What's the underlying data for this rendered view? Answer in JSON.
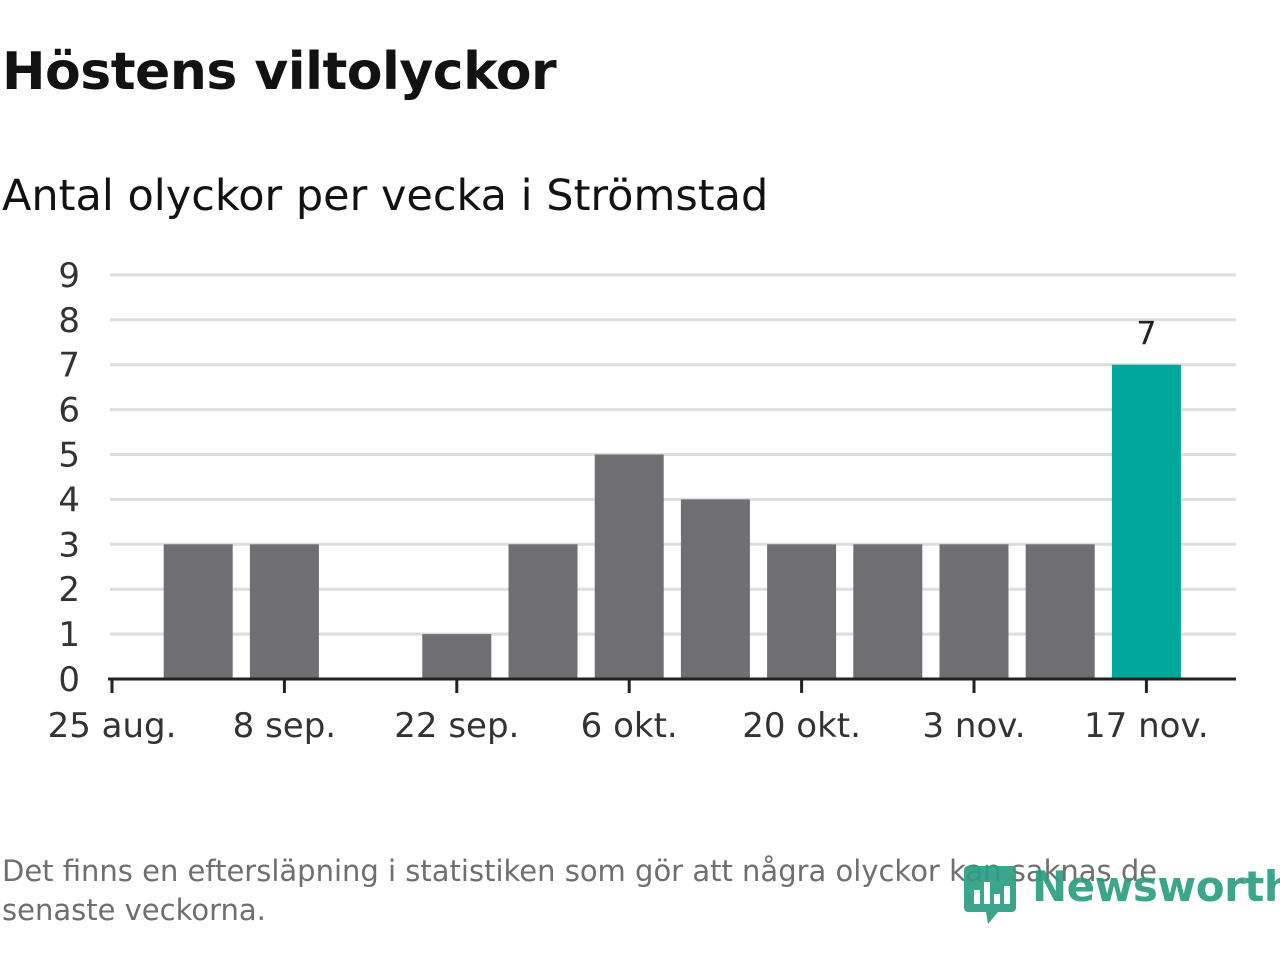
{
  "title": "Höstens viltolyckor",
  "subtitle": "Antal olyckor per vecka i Strömstad",
  "note": {
    "line1": "Det finns en eftersläpning i statistiken som gör att några olyckor kan saknas de",
    "line2": "senaste veckorna."
  },
  "brand": "Newsworthy",
  "colors": {
    "bar": "#6f6e73",
    "highlight": "#00a79b",
    "grid": "#dddddd",
    "axis": "#222222",
    "text": "#333333",
    "brand": "#2d9e83"
  },
  "chart_data": {
    "type": "bar",
    "title": "Höstens viltolyckor",
    "subtitle": "Antal olyckor per vecka i Strömstad",
    "xlabel": "",
    "ylabel": "",
    "ylim": [
      0,
      9
    ],
    "yticks": [
      0,
      1,
      2,
      3,
      4,
      5,
      6,
      7,
      8,
      9
    ],
    "grid": true,
    "weeks": [
      "25 aug.",
      "1 sep.",
      "8 sep.",
      "15 sep.",
      "22 sep.",
      "29 sep.",
      "6 okt.",
      "13 okt.",
      "20 okt.",
      "27 okt.",
      "3 nov.",
      "10 nov.",
      "17 nov."
    ],
    "values": [
      null,
      3,
      3,
      0,
      1,
      3,
      5,
      4,
      3,
      3,
      3,
      3,
      7
    ],
    "xtick_labels": [
      "25 aug.",
      "8 sep.",
      "22 sep.",
      "6 okt.",
      "20 okt.",
      "3 nov.",
      "17 nov."
    ],
    "highlight_index": 12,
    "data_labels": [
      {
        "index": 12,
        "text": "7"
      }
    ]
  }
}
